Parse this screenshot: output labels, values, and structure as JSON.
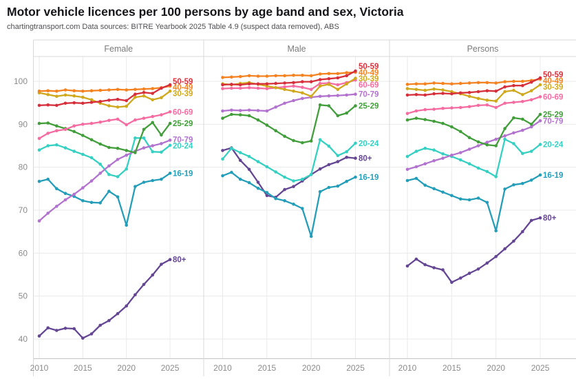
{
  "header": {
    "title": "Motor vehicle licences per 100 persons by age band and sex, Victoria",
    "subtitle": "chartingtransport.com  Data sources: BITRE Yearbook 2025 Table 4.9 (suspect data removed), ABS"
  },
  "colors": {
    "age_16_19": "#249eb8",
    "age_20_24": "#35d0c2",
    "age_25_29": "#429e3b",
    "age_30_39": "#cfa81d",
    "age_40_49": "#f58220",
    "age_50_59": "#d62f3b",
    "age_60_69": "#f46ca1",
    "age_70_79": "#b273ce",
    "age_80_plus": "#644693",
    "grid": "#eaeaea",
    "frame": "#d8d8d8",
    "axis_text": "#8b8b8b"
  },
  "chart_data": {
    "type": "line",
    "title": "Motor vehicle licences per 100 persons by age band and sex, Victoria",
    "x": [
      2010,
      2011,
      2012,
      2013,
      2014,
      2015,
      2016,
      2017,
      2018,
      2019,
      2020,
      2021,
      2022,
      2023,
      2024,
      2025
    ],
    "x_ticks": [
      2010,
      2015,
      2020,
      2025
    ],
    "y_ticks": [
      40,
      50,
      60,
      70,
      80,
      90,
      100
    ],
    "ylim": [
      38,
      104
    ],
    "grid": true,
    "legend_position": "line-end-labels",
    "panels": [
      {
        "title": "Female",
        "series": [
          {
            "label": "80+",
            "color": "#644693",
            "values": [
              40.7,
              42.6,
              42.0,
              42.5,
              42.4,
              40.2,
              41.2,
              43.2,
              44.3,
              45.9,
              47.7,
              50.3,
              52.7,
              54.9,
              57.4,
              58.5
            ]
          },
          {
            "label": "16-19",
            "color": "#249eb8",
            "values": [
              76.7,
              77.2,
              75.0,
              73.9,
              73.2,
              72.2,
              71.8,
              71.7,
              74.4,
              73.1,
              66.5,
              75.5,
              76.5,
              76.9,
              77.2,
              78.6
            ]
          },
          {
            "label": "20-24",
            "color": "#35d0c2",
            "values": [
              84.0,
              85.0,
              85.2,
              84.5,
              83.7,
              83.0,
              82.2,
              80.7,
              78.3,
              77.8,
              79.6,
              86.8,
              86.8,
              83.6,
              83.5,
              85.1
            ]
          },
          {
            "label": "70-79",
            "color": "#b273ce",
            "values": [
              67.5,
              69.3,
              70.9,
              72.4,
              73.7,
              75.2,
              76.8,
              78.6,
              80.3,
              81.8,
              82.8,
              83.7,
              84.5,
              85.0,
              85.5,
              86.3
            ]
          },
          {
            "label": "25-29",
            "color": "#429e3b",
            "values": [
              90.2,
              90.3,
              89.6,
              89.0,
              88.3,
              87.4,
              86.4,
              85.4,
              84.6,
              84.4,
              83.9,
              83.4,
              88.8,
              90.4,
              87.5,
              90.2
            ]
          },
          {
            "label": "60-69",
            "color": "#f46ca1",
            "values": [
              86.7,
              87.9,
              88.5,
              88.8,
              89.6,
              90.0,
              90.2,
              90.5,
              90.9,
              91.2,
              89.9,
              91.0,
              91.4,
              91.8,
              92.2,
              92.9
            ]
          },
          {
            "label": "30-39",
            "color": "#cfa81d",
            "values": [
              97.3,
              96.9,
              96.5,
              96.8,
              96.6,
              96.3,
              95.7,
              94.9,
              94.3,
              94.0,
              94.2,
              96.3,
              96.6,
              95.7,
              96.2,
              97.7
            ]
          },
          {
            "label": "40-49",
            "color": "#f58220",
            "values": [
              97.7,
              97.8,
              97.7,
              98.0,
              97.8,
              97.7,
              97.8,
              97.9,
              98.0,
              98.1,
              98.0,
              98.1,
              98.2,
              98.3,
              98.5,
              98.9
            ]
          },
          {
            "label": "50-59",
            "color": "#d62f3b",
            "values": [
              94.4,
              94.5,
              94.4,
              94.9,
              95.0,
              94.9,
              95.1,
              95.3,
              95.6,
              95.8,
              95.5,
              97.0,
              97.4,
              97.2,
              98.4,
              99.2
            ]
          }
        ]
      },
      {
        "title": "Male",
        "series": [
          {
            "label": "80+",
            "color": "#644693",
            "values": [
              83.9,
              84.5,
              81.6,
              79.5,
              76.5,
              73.4,
              73.0,
              74.8,
              75.5,
              76.8,
              78.3,
              79.6,
              80.6,
              81.3,
              82.3,
              82.1
            ]
          },
          {
            "label": "16-19",
            "color": "#249eb8",
            "values": [
              78.0,
              78.8,
              77.2,
              76.4,
              75.1,
              74.1,
              72.7,
              72.2,
              71.4,
              70.4,
              63.9,
              74.3,
              75.3,
              75.6,
              76.7,
              77.7
            ]
          },
          {
            "label": "20-24",
            "color": "#35d0c2",
            "values": [
              81.9,
              84.4,
              83.4,
              82.5,
              81.3,
              80.1,
              78.9,
              77.7,
              76.8,
              77.2,
              78.3,
              86.4,
              84.9,
              82.7,
              83.6,
              85.6
            ]
          },
          {
            "label": "70-79",
            "color": "#b273ce",
            "values": [
              93.1,
              93.3,
              93.2,
              93.3,
              93.2,
              93.1,
              94.0,
              94.9,
              95.5,
              96.0,
              96.3,
              96.5,
              96.6,
              96.7,
              96.8,
              97.0
            ]
          },
          {
            "label": "25-29",
            "color": "#429e3b",
            "values": [
              91.4,
              92.3,
              92.2,
              92.0,
              91.0,
              89.8,
              88.5,
              87.2,
              86.2,
              85.7,
              86.1,
              94.5,
              94.3,
              92.0,
              92.6,
              94.3
            ]
          },
          {
            "label": "60-69",
            "color": "#f46ca1",
            "values": [
              98.3,
              98.4,
              98.4,
              98.5,
              98.4,
              98.3,
              98.5,
              98.7,
              98.9,
              98.6,
              98.1,
              99.5,
              99.6,
              99.2,
              99.7,
              100.3
            ]
          },
          {
            "label": "30-39",
            "color": "#cfa81d",
            "values": [
              99.4,
              99.2,
              99.5,
              99.7,
              99.3,
              98.9,
              98.5,
              98.1,
              97.7,
              97.3,
              96.5,
              98.9,
              99.3,
              98.1,
              99.4,
              100.7
            ]
          },
          {
            "label": "40-49",
            "color": "#f58220",
            "values": [
              100.9,
              101.0,
              101.1,
              101.3,
              101.2,
              101.2,
              101.3,
              101.3,
              101.4,
              101.4,
              101.3,
              101.7,
              101.8,
              101.8,
              102.0,
              102.1
            ]
          },
          {
            "label": "50-59",
            "color": "#d62f3b",
            "values": [
              99.2,
              99.3,
              99.2,
              99.4,
              99.4,
              99.4,
              99.5,
              99.6,
              99.7,
              99.9,
              99.9,
              100.4,
              100.6,
              100.8,
              101.3,
              102.4
            ]
          }
        ]
      },
      {
        "title": "Persons",
        "series": [
          {
            "label": "80+",
            "color": "#644693",
            "values": [
              57.0,
              58.6,
              57.3,
              56.6,
              56.1,
              53.2,
              54.2,
              55.3,
              56.3,
              57.7,
              59.2,
              61.0,
              62.8,
              65.0,
              67.6,
              68.2
            ]
          },
          {
            "label": "16-19",
            "color": "#249eb8",
            "values": [
              76.9,
              77.4,
              75.8,
              75.0,
              74.2,
              73.4,
              72.6,
              72.4,
              72.8,
              71.8,
              65.2,
              74.9,
              75.9,
              76.2,
              77.0,
              78.2
            ]
          },
          {
            "label": "20-24",
            "color": "#35d0c2",
            "values": [
              82.5,
              83.7,
              84.4,
              84.0,
              83.1,
              82.5,
              81.7,
              80.8,
              79.8,
              79.0,
              77.8,
              86.5,
              85.5,
              83.2,
              83.7,
              85.3
            ]
          },
          {
            "label": "70-79",
            "color": "#b273ce",
            "values": [
              79.5,
              80.1,
              80.8,
              81.5,
              82.1,
              82.8,
              83.4,
              84.2,
              85.0,
              85.8,
              86.5,
              87.3,
              88.0,
              88.6,
              89.4,
              90.8
            ]
          },
          {
            "label": "25-29",
            "color": "#429e3b",
            "values": [
              91.0,
              91.4,
              91.1,
              90.7,
              90.2,
              89.4,
              88.3,
              86.9,
              85.9,
              85.2,
              85.0,
              89.0,
              91.5,
              91.2,
              90.0,
              92.3
            ]
          },
          {
            "label": "60-69",
            "color": "#f46ca1",
            "values": [
              92.5,
              93.1,
              93.4,
              93.5,
              93.7,
              93.8,
              93.9,
              94.1,
              94.4,
              94.5,
              93.9,
              94.9,
              95.1,
              95.3,
              95.7,
              96.4
            ]
          },
          {
            "label": "30-39",
            "color": "#cfa81d",
            "values": [
              98.3,
              98.1,
              97.9,
              98.2,
              98.0,
              97.6,
              97.1,
              96.5,
              96.0,
              95.6,
              95.4,
              97.6,
              97.9,
              96.9,
              97.8,
              99.2
            ]
          },
          {
            "label": "40-49",
            "color": "#f58220",
            "values": [
              99.3,
              99.4,
              99.4,
              99.6,
              99.5,
              99.4,
              99.5,
              99.6,
              99.7,
              99.7,
              99.6,
              99.9,
              100.0,
              100.0,
              100.2,
              100.5
            ]
          },
          {
            "label": "50-59",
            "color": "#d62f3b",
            "values": [
              96.8,
              96.9,
              96.8,
              97.1,
              97.2,
              97.1,
              97.3,
              97.4,
              97.6,
              97.8,
              97.7,
              98.7,
              99.0,
              99.0,
              99.8,
              100.8
            ]
          }
        ]
      }
    ]
  }
}
